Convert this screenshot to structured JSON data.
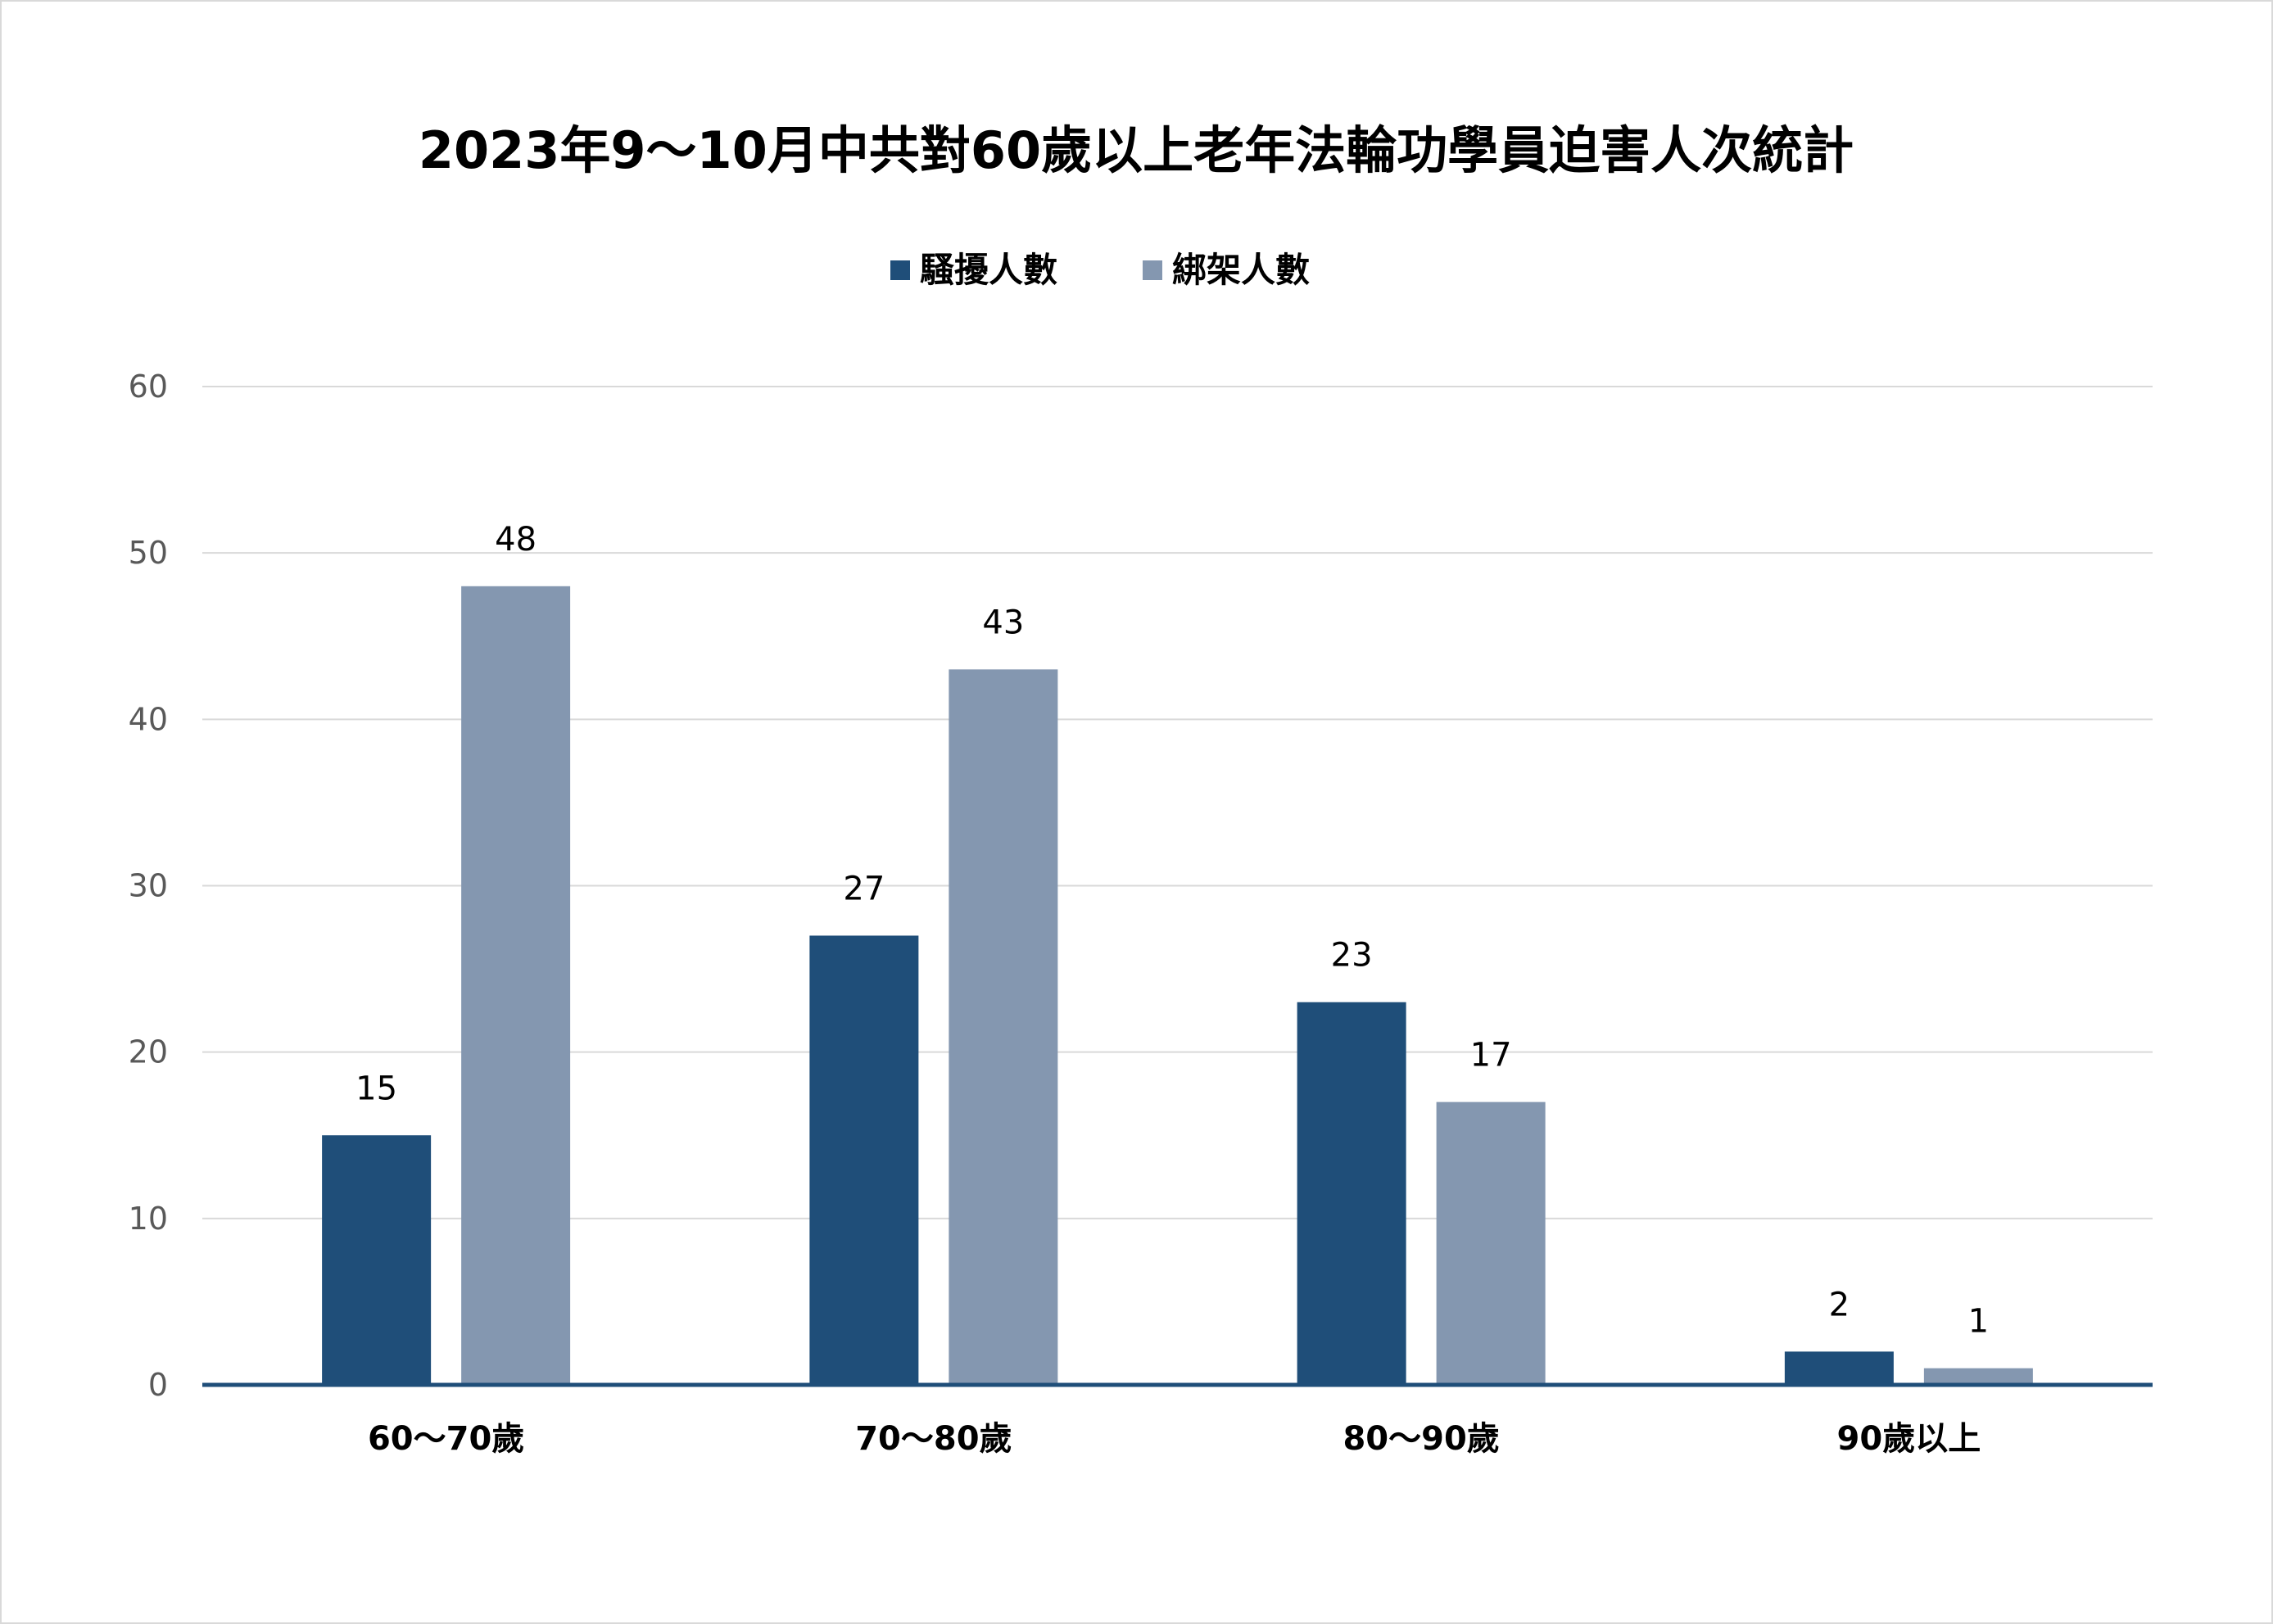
{
  "chart_data": {
    "type": "bar",
    "title": "2023年9～10月中共對60歲以上老年法輪功學員迫害人次統計",
    "categories": [
      "60～70歲",
      "70～80歲",
      "80～90歲",
      "90歲以上"
    ],
    "series": [
      {
        "name": "騷擾人數",
        "values": [
          15,
          27,
          23,
          2
        ],
        "color": "#1f4e79"
      },
      {
        "name": "綁架人數",
        "values": [
          48,
          43,
          17,
          1
        ],
        "color": "#8497b0"
      }
    ],
    "ylim": [
      0,
      60
    ],
    "yticks": [
      0,
      10,
      20,
      30,
      40,
      50,
      60
    ],
    "grid": true,
    "legend_position": "top-center",
    "data_labels": true,
    "axis_color": "#1f4e79",
    "grid_color": "#d9d9d9"
  }
}
